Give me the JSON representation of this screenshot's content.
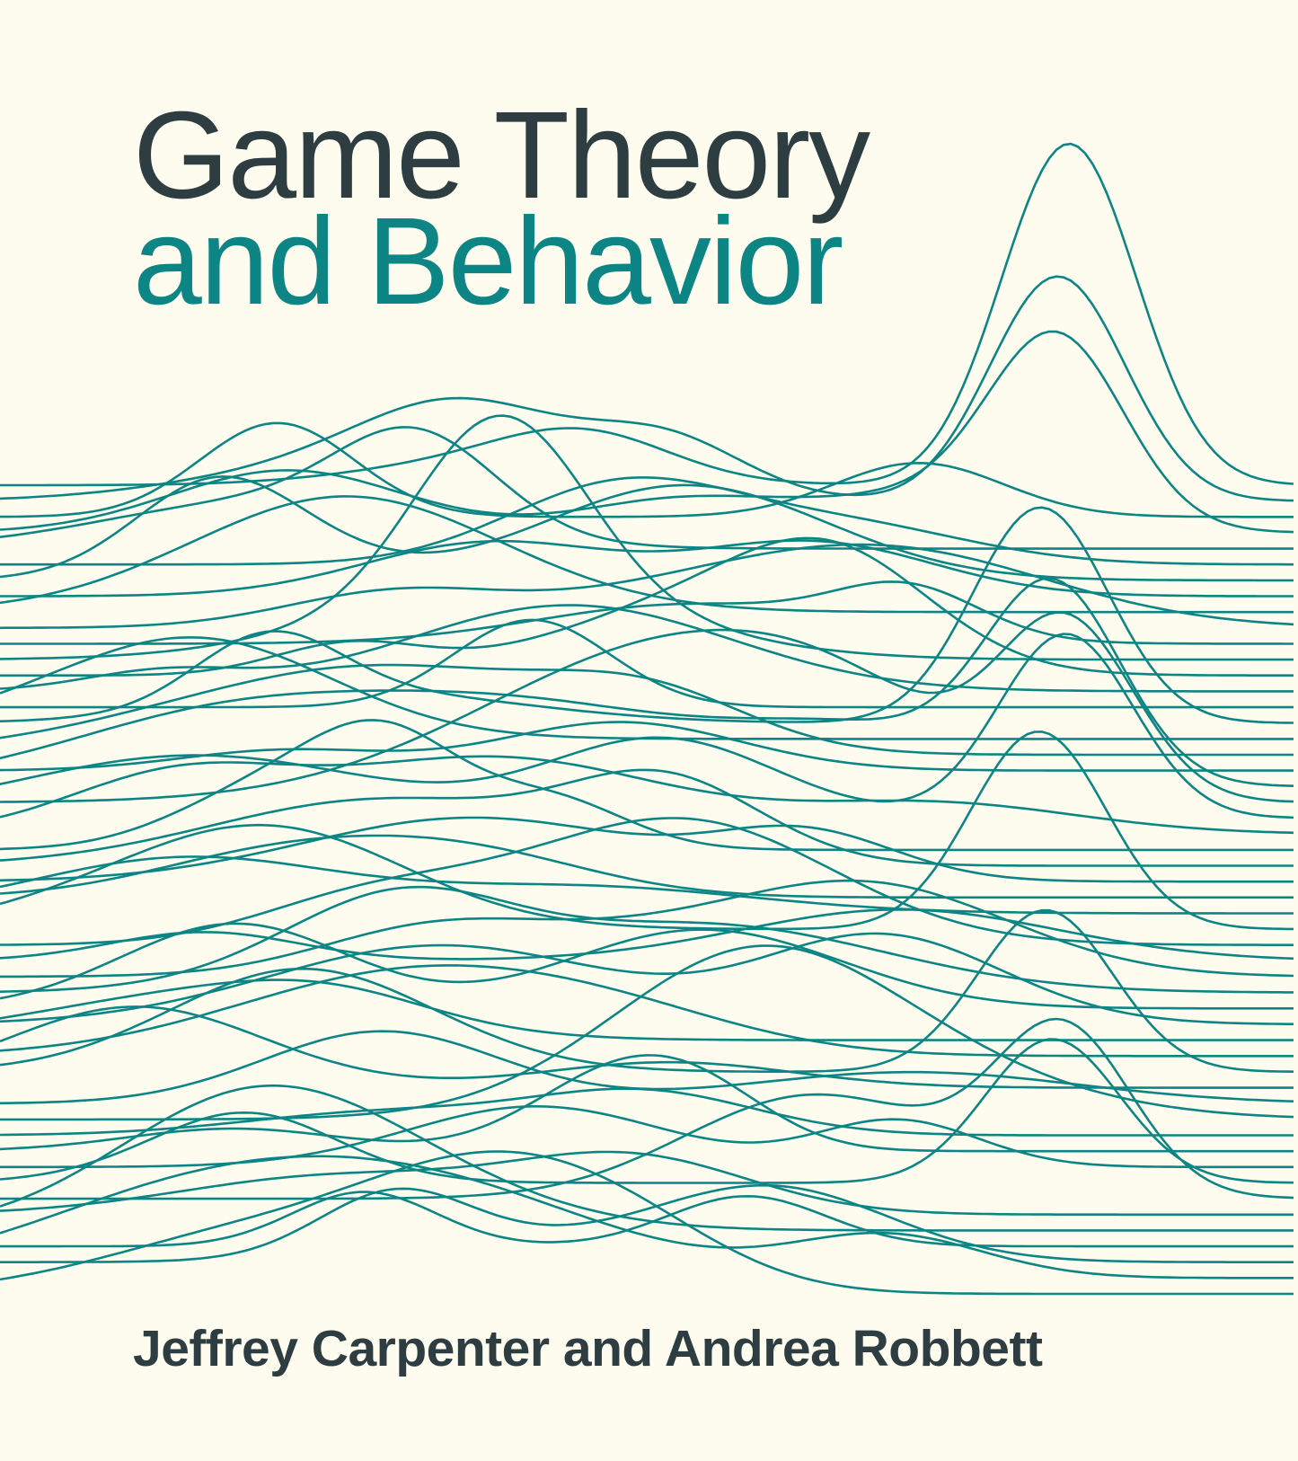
{
  "cover": {
    "title_line1": "Game Theory",
    "title_line2": "and Behavior",
    "authors": "Jeffrey Carpenter and Andrea Robbett"
  },
  "colors": {
    "background": "#fdfcef",
    "title_dark": "#2e3d42",
    "accent_teal": "#0e8585"
  }
}
